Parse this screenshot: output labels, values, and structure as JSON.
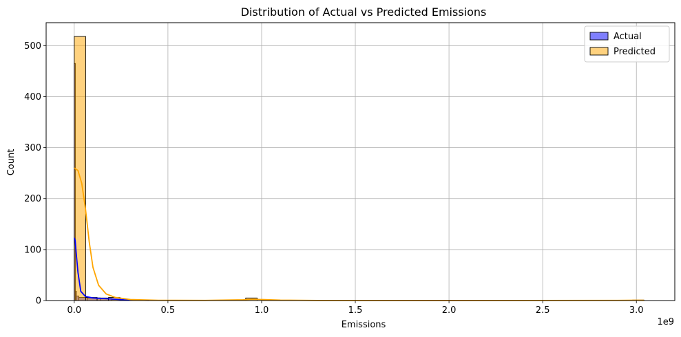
{
  "chart_data": {
    "type": "bar",
    "title": "Distribution of Actual vs Predicted Emissions",
    "xlabel": "Emissions",
    "ylabel": "Count",
    "x_offset_label": "1e9",
    "xlim": [
      -0.15,
      3.205
    ],
    "ylim": [
      0,
      545
    ],
    "x_ticks": [
      0.0,
      0.5,
      1.0,
      1.5,
      2.0,
      2.5,
      3.0
    ],
    "x_tick_labels": [
      "0.0",
      "0.5",
      "1.0",
      "1.5",
      "2.0",
      "2.5",
      "3.0"
    ],
    "y_ticks": [
      0,
      100,
      200,
      300,
      400,
      500
    ],
    "y_tick_labels": [
      "0",
      "100",
      "200",
      "300",
      "400",
      "500"
    ],
    "grid": true,
    "legend_position": "top-right",
    "series": [
      {
        "name": "Actual",
        "color": "#0000ff",
        "fill_alpha": 0.5,
        "bins": [
          {
            "x0": 0.0,
            "x1": 0.006,
            "count": 465
          },
          {
            "x0": 0.006,
            "x1": 0.012,
            "count": 18
          },
          {
            "x0": 0.012,
            "x1": 0.024,
            "count": 9
          },
          {
            "x0": 0.024,
            "x1": 0.07,
            "count": 6
          },
          {
            "x0": 0.07,
            "x1": 0.14,
            "count": 5
          },
          {
            "x0": 0.14,
            "x1": 0.2,
            "count": 4
          },
          {
            "x0": 0.2,
            "x1": 0.26,
            "count": 2
          }
        ],
        "kde": [
          [
            0.0,
            123
          ],
          [
            0.005,
            118
          ],
          [
            0.01,
            95
          ],
          [
            0.02,
            55
          ],
          [
            0.035,
            18
          ],
          [
            0.06,
            8
          ],
          [
            0.1,
            5
          ],
          [
            0.15,
            4
          ],
          [
            0.2,
            3
          ],
          [
            0.28,
            1
          ],
          [
            0.4,
            0.3
          ]
        ]
      },
      {
        "name": "Predicted",
        "color": "#ffa500",
        "fill_alpha": 0.5,
        "bins": [
          {
            "x0": 0.0,
            "x1": 0.061,
            "count": 518
          },
          {
            "x0": 0.061,
            "x1": 0.122,
            "count": 6
          },
          {
            "x0": 0.122,
            "x1": 0.183,
            "count": 5
          },
          {
            "x0": 0.183,
            "x1": 0.244,
            "count": 6
          },
          {
            "x0": 0.244,
            "x1": 0.305,
            "count": 1
          },
          {
            "x0": 0.915,
            "x1": 0.976,
            "count": 5
          },
          {
            "x0": 2.98,
            "x1": 3.04,
            "count": 1
          }
        ],
        "kde": [
          [
            0.0,
            260
          ],
          [
            0.02,
            255
          ],
          [
            0.04,
            230
          ],
          [
            0.06,
            180
          ],
          [
            0.08,
            115
          ],
          [
            0.1,
            65
          ],
          [
            0.13,
            30
          ],
          [
            0.17,
            13
          ],
          [
            0.22,
            6
          ],
          [
            0.3,
            2
          ],
          [
            0.45,
            0.5
          ],
          [
            0.7,
            0.3
          ],
          [
            0.9,
            1.5
          ],
          [
            0.95,
            2.5
          ],
          [
            1.0,
            2
          ],
          [
            1.1,
            0.8
          ],
          [
            1.3,
            0.2
          ],
          [
            2.0,
            0.1
          ],
          [
            2.9,
            0.3
          ],
          [
            3.0,
            0.6
          ],
          [
            3.04,
            0.4
          ]
        ]
      }
    ]
  }
}
